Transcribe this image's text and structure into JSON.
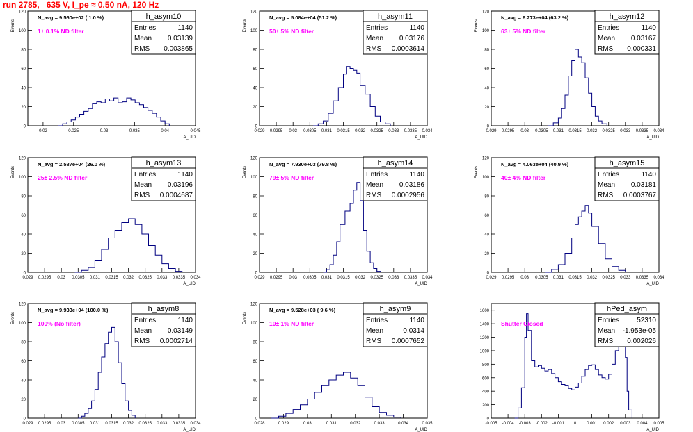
{
  "page_title": "run 2785,   635 V, I_pe ≈ 0.50 nA, 120 Hz",
  "colors": {
    "title": "#ff0000",
    "histogram": "#000080",
    "filter_label": "#ff00ff",
    "axis": "#000000"
  },
  "stats_labels": {
    "entries": "Entries",
    "mean": "Mean",
    "rms": "RMS"
  },
  "chart_data": [
    {
      "type": "histogram",
      "name": "h_asym10",
      "navg": "N_avg = 9.560e+02 ( 1.0 %)",
      "filter": "1± 0.1% ND filter",
      "entries": "1140",
      "mean": "0.03139",
      "rms": "0.003865",
      "ylabel": "Events",
      "xlabel": "A_UID",
      "xlim": [
        0.0175,
        0.045
      ],
      "ylim": [
        0,
        120
      ],
      "xticks": [
        0.02,
        0.025,
        0.03,
        0.035,
        0.04,
        0.045
      ],
      "xtick_labels": [
        "0.02",
        "0.025",
        "0.03",
        "0.035",
        "0.04",
        "0.045"
      ],
      "yticks": [
        0,
        20,
        40,
        60,
        80,
        100,
        120
      ],
      "bins": [
        [
          0.0225,
          0
        ],
        [
          0.0232,
          2
        ],
        [
          0.0239,
          4
        ],
        [
          0.0246,
          6
        ],
        [
          0.0253,
          9
        ],
        [
          0.026,
          12
        ],
        [
          0.0267,
          15
        ],
        [
          0.0274,
          18
        ],
        [
          0.0281,
          23
        ],
        [
          0.0288,
          25
        ],
        [
          0.0295,
          24
        ],
        [
          0.0302,
          28
        ],
        [
          0.0309,
          26
        ],
        [
          0.0316,
          29
        ],
        [
          0.0323,
          24
        ],
        [
          0.033,
          25
        ],
        [
          0.0337,
          29
        ],
        [
          0.0344,
          27
        ],
        [
          0.0351,
          24
        ],
        [
          0.0358,
          22
        ],
        [
          0.0365,
          19
        ],
        [
          0.0372,
          16
        ],
        [
          0.0379,
          13
        ],
        [
          0.0386,
          9
        ],
        [
          0.0393,
          5
        ],
        [
          0.04,
          2
        ],
        [
          0.0407,
          0
        ]
      ]
    },
    {
      "type": "histogram",
      "name": "h_asym11",
      "navg": "N_avg = 5.084e+04 (51.2 %)",
      "filter": "50± 5% ND filter",
      "entries": "1140",
      "mean": "0.03176",
      "rms": "0.0003614",
      "ylabel": "Events",
      "xlabel": "A_UID",
      "xlim": [
        0.029,
        0.034
      ],
      "ylim": [
        0,
        120
      ],
      "xticks": [
        0.029,
        0.0295,
        0.03,
        0.0305,
        0.031,
        0.0315,
        0.032,
        0.0325,
        0.033,
        0.0335,
        0.034
      ],
      "xtick_labels": [
        "0.029",
        "0.0295",
        "0.03",
        "0.0305",
        "0.031",
        "0.0315",
        "0.032",
        "0.0325",
        "0.033",
        "0.0335",
        "0.034"
      ],
      "yticks": [
        0,
        20,
        40,
        60,
        80,
        100,
        120
      ],
      "bins": [
        [
          0.0306,
          0
        ],
        [
          0.03075,
          2
        ],
        [
          0.0309,
          5
        ],
        [
          0.03105,
          13
        ],
        [
          0.0312,
          26
        ],
        [
          0.03135,
          40
        ],
        [
          0.0315,
          54
        ],
        [
          0.0316,
          62
        ],
        [
          0.0317,
          60
        ],
        [
          0.0318,
          58
        ],
        [
          0.0319,
          55
        ],
        [
          0.032,
          42
        ],
        [
          0.03215,
          33
        ],
        [
          0.0323,
          20
        ],
        [
          0.03245,
          10
        ],
        [
          0.0326,
          4
        ],
        [
          0.03275,
          2
        ],
        [
          0.0329,
          0
        ]
      ]
    },
    {
      "type": "histogram",
      "name": "h_asym12",
      "navg": "N_avg = 6.273e+04 (63.2 %)",
      "filter": "63± 5% ND filter",
      "entries": "1140",
      "mean": "0.03167",
      "rms": "0.000331",
      "ylabel": "Events",
      "xlabel": "A_UID",
      "xlim": [
        0.029,
        0.034
      ],
      "ylim": [
        0,
        120
      ],
      "xticks": [
        0.029,
        0.0295,
        0.03,
        0.0305,
        0.031,
        0.0315,
        0.032,
        0.0325,
        0.033,
        0.0335,
        0.034
      ],
      "xtick_labels": [
        "0.029",
        "0.0295",
        "0.03",
        "0.0305",
        "0.031",
        "0.0315",
        "0.032",
        "0.0325",
        "0.033",
        "0.0335",
        "0.034"
      ],
      "yticks": [
        0,
        20,
        40,
        60,
        80,
        100,
        120
      ],
      "bins": [
        [
          0.0307,
          0
        ],
        [
          0.03085,
          3
        ],
        [
          0.031,
          8
        ],
        [
          0.0311,
          18
        ],
        [
          0.0312,
          32
        ],
        [
          0.0313,
          52
        ],
        [
          0.0314,
          68
        ],
        [
          0.0315,
          80
        ],
        [
          0.0316,
          72
        ],
        [
          0.0317,
          66
        ],
        [
          0.0318,
          50
        ],
        [
          0.0319,
          34
        ],
        [
          0.032,
          20
        ],
        [
          0.0321,
          10
        ],
        [
          0.0322,
          5
        ],
        [
          0.0323,
          2
        ],
        [
          0.03245,
          0
        ]
      ]
    },
    {
      "type": "histogram",
      "name": "h_asym13",
      "navg": "N_avg = 2.587e+04 (26.0 %)",
      "filter": "25± 2.5% ND filter",
      "entries": "1140",
      "mean": "0.03196",
      "rms": "0.0004687",
      "ylabel": "Events",
      "xlabel": "A_UID",
      "xlim": [
        0.029,
        0.034
      ],
      "ylim": [
        0,
        120
      ],
      "xticks": [
        0.029,
        0.0295,
        0.03,
        0.0305,
        0.031,
        0.0315,
        0.032,
        0.0325,
        0.033,
        0.0335,
        0.034
      ],
      "xtick_labels": [
        "0.029",
        "0.0295",
        "0.03",
        "0.0305",
        "0.031",
        "0.0315",
        "0.032",
        "0.0325",
        "0.033",
        "0.0335",
        "0.034"
      ],
      "yticks": [
        0,
        20,
        40,
        60,
        80,
        100,
        120
      ],
      "bins": [
        [
          0.0304,
          0
        ],
        [
          0.0306,
          2
        ],
        [
          0.0308,
          5
        ],
        [
          0.031,
          12
        ],
        [
          0.0312,
          24
        ],
        [
          0.0314,
          36
        ],
        [
          0.0316,
          44
        ],
        [
          0.0318,
          52
        ],
        [
          0.032,
          56
        ],
        [
          0.0322,
          50
        ],
        [
          0.0324,
          40
        ],
        [
          0.0326,
          28
        ],
        [
          0.0328,
          18
        ],
        [
          0.033,
          9
        ],
        [
          0.0332,
          4
        ],
        [
          0.0334,
          1
        ],
        [
          0.0336,
          0
        ]
      ]
    },
    {
      "type": "histogram",
      "name": "h_asym14",
      "navg": "N_avg = 7.930e+03 (79.8 %)",
      "filter": "79± 5% ND filter",
      "entries": "1140",
      "mean": "0.03186",
      "rms": "0.0002956",
      "ylabel": "Events",
      "xlabel": "A_UID",
      "xlim": [
        0.029,
        0.034
      ],
      "ylim": [
        0,
        120
      ],
      "xticks": [
        0.029,
        0.0295,
        0.03,
        0.0305,
        0.031,
        0.0315,
        0.032,
        0.0325,
        0.033,
        0.0335,
        0.034
      ],
      "xtick_labels": [
        "0.029",
        "0.0295",
        "0.03",
        "0.0305",
        "0.031",
        "0.0315",
        "0.032",
        "0.0325",
        "0.033",
        "0.0335",
        "0.034"
      ],
      "yticks": [
        0,
        20,
        40,
        60,
        80,
        100,
        120
      ],
      "bins": [
        [
          0.0309,
          0
        ],
        [
          0.031,
          3
        ],
        [
          0.0311,
          8
        ],
        [
          0.0312,
          18
        ],
        [
          0.0313,
          32
        ],
        [
          0.0314,
          50
        ],
        [
          0.03155,
          64
        ],
        [
          0.0317,
          72
        ],
        [
          0.0318,
          86
        ],
        [
          0.0319,
          94
        ],
        [
          0.032,
          75
        ],
        [
          0.0321,
          44
        ],
        [
          0.0322,
          22
        ],
        [
          0.0323,
          10
        ],
        [
          0.0324,
          4
        ],
        [
          0.0325,
          1
        ],
        [
          0.0326,
          0
        ]
      ]
    },
    {
      "type": "histogram",
      "name": "h_asym15",
      "navg": "N_avg = 4.063e+04 (40.9 %)",
      "filter": "40± 4% ND filter",
      "entries": "1140",
      "mean": "0.03181",
      "rms": "0.0003767",
      "ylabel": "Events",
      "xlabel": "A_UID",
      "xlim": [
        0.029,
        0.034
      ],
      "ylim": [
        0,
        120
      ],
      "xticks": [
        0.029,
        0.0295,
        0.03,
        0.0305,
        0.031,
        0.0315,
        0.032,
        0.0325,
        0.033,
        0.0335,
        0.034
      ],
      "xtick_labels": [
        "0.029",
        "0.0295",
        "0.03",
        "0.0305",
        "0.031",
        "0.0315",
        "0.032",
        "0.0325",
        "0.033",
        "0.0335",
        "0.034"
      ],
      "yticks": [
        0,
        20,
        40,
        60,
        80,
        100,
        120
      ],
      "bins": [
        [
          0.0306,
          0
        ],
        [
          0.0308,
          3
        ],
        [
          0.031,
          8
        ],
        [
          0.0312,
          20
        ],
        [
          0.0314,
          36
        ],
        [
          0.0315,
          50
        ],
        [
          0.0316,
          58
        ],
        [
          0.0317,
          64
        ],
        [
          0.0318,
          70
        ],
        [
          0.0319,
          62
        ],
        [
          0.032,
          48
        ],
        [
          0.0322,
          30
        ],
        [
          0.0324,
          14
        ],
        [
          0.0326,
          6
        ],
        [
          0.0328,
          2
        ],
        [
          0.033,
          0
        ]
      ]
    },
    {
      "type": "histogram",
      "name": "h_asym8",
      "navg": "N_avg = 9.933e+04 (100.0 %)",
      "filter": "100% (No filter)",
      "entries": "1140",
      "mean": "0.03149",
      "rms": "0.0002714",
      "ylabel": "Events",
      "xlabel": "A_UID",
      "xlim": [
        0.029,
        0.034
      ],
      "ylim": [
        0,
        120
      ],
      "xticks": [
        0.029,
        0.0295,
        0.03,
        0.0305,
        0.031,
        0.0315,
        0.032,
        0.0325,
        0.033,
        0.0335,
        0.034
      ],
      "xtick_labels": [
        "0.029",
        "0.0295",
        "0.03",
        "0.0305",
        "0.031",
        "0.0315",
        "0.032",
        "0.0325",
        "0.033",
        "0.0335",
        "0.034"
      ],
      "yticks": [
        0,
        20,
        40,
        60,
        80,
        100,
        120
      ],
      "bins": [
        [
          0.0305,
          0
        ],
        [
          0.0306,
          2
        ],
        [
          0.0307,
          5
        ],
        [
          0.0308,
          10
        ],
        [
          0.0309,
          18
        ],
        [
          0.031,
          30
        ],
        [
          0.0311,
          48
        ],
        [
          0.0312,
          64
        ],
        [
          0.0313,
          78
        ],
        [
          0.0314,
          90
        ],
        [
          0.0315,
          95
        ],
        [
          0.0316,
          80
        ],
        [
          0.0317,
          58
        ],
        [
          0.0318,
          36
        ],
        [
          0.0319,
          18
        ],
        [
          0.032,
          8
        ],
        [
          0.0321,
          3
        ],
        [
          0.0322,
          0
        ]
      ]
    },
    {
      "type": "histogram",
      "name": "h_asym9",
      "navg": "N_avg = 9.528e+03 ( 9.6 %)",
      "filter": "10± 1% ND filter",
      "entries": "1140",
      "mean": "0.0314",
      "rms": "0.0007652",
      "ylabel": "Events",
      "xlabel": "A_UID",
      "xlim": [
        0.028,
        0.035
      ],
      "ylim": [
        0,
        120
      ],
      "xticks": [
        0.028,
        0.029,
        0.03,
        0.031,
        0.032,
        0.033,
        0.034,
        0.035
      ],
      "xtick_labels": [
        "0.028",
        "0.029",
        "0.03",
        "0.031",
        "0.032",
        "0.033",
        "0.034",
        "0.035"
      ],
      "yticks": [
        0,
        20,
        40,
        60,
        80,
        100,
        120
      ],
      "bins": [
        [
          0.0285,
          0
        ],
        [
          0.0288,
          2
        ],
        [
          0.0291,
          5
        ],
        [
          0.0294,
          9
        ],
        [
          0.0297,
          14
        ],
        [
          0.03,
          20
        ],
        [
          0.0303,
          27
        ],
        [
          0.0306,
          34
        ],
        [
          0.0309,
          40
        ],
        [
          0.0312,
          45
        ],
        [
          0.0315,
          48
        ],
        [
          0.0318,
          42
        ],
        [
          0.0321,
          34
        ],
        [
          0.0324,
          22
        ],
        [
          0.0327,
          12
        ],
        [
          0.033,
          6
        ],
        [
          0.0333,
          3
        ],
        [
          0.0336,
          1
        ],
        [
          0.0339,
          0
        ]
      ]
    },
    {
      "type": "histogram",
      "name": "hPed_asym",
      "navg": "",
      "filter": "Shutter Closed",
      "entries": "52310",
      "mean": "-1.953e-05",
      "rms": "0.002026",
      "ylabel": "",
      "xlabel": "A_UID",
      "xlim": [
        -0.005,
        0.005
      ],
      "ylim": [
        0,
        1700
      ],
      "xticks": [
        -0.005,
        -0.004,
        -0.003,
        -0.002,
        -0.001,
        0,
        0.001,
        0.002,
        0.003,
        0.004,
        0.005
      ],
      "xtick_labels": [
        "-0.005",
        "-0.004",
        "-0.003",
        "-0.002",
        "-0.001",
        "0",
        "0.001",
        "0.002",
        "0.003",
        "0.004",
        "0.005"
      ],
      "yticks": [
        0,
        200,
        400,
        600,
        800,
        1000,
        1200,
        1400,
        1600
      ],
      "bins": [
        [
          -0.0036,
          0
        ],
        [
          -0.0034,
          150
        ],
        [
          -0.0032,
          450
        ],
        [
          -0.003,
          1200
        ],
        [
          -0.0029,
          1550
        ],
        [
          -0.0028,
          1300
        ],
        [
          -0.0026,
          850
        ],
        [
          -0.0024,
          760
        ],
        [
          -0.0022,
          780
        ],
        [
          -0.002,
          740
        ],
        [
          -0.0018,
          700
        ],
        [
          -0.0016,
          720
        ],
        [
          -0.0014,
          660
        ],
        [
          -0.0012,
          600
        ],
        [
          -0.001,
          540
        ],
        [
          -0.0008,
          500
        ],
        [
          -0.0006,
          480
        ],
        [
          -0.0004,
          440
        ],
        [
          -0.0002,
          420
        ],
        [
          0,
          460
        ],
        [
          0.0002,
          520
        ],
        [
          0.0004,
          620
        ],
        [
          0.0006,
          720
        ],
        [
          0.0008,
          780
        ],
        [
          0.001,
          790
        ],
        [
          0.0012,
          720
        ],
        [
          0.0014,
          640
        ],
        [
          0.0016,
          600
        ],
        [
          0.0018,
          580
        ],
        [
          0.002,
          650
        ],
        [
          0.0022,
          800
        ],
        [
          0.0024,
          1000
        ],
        [
          0.0026,
          1150
        ],
        [
          0.0028,
          1200
        ],
        [
          0.003,
          900
        ],
        [
          0.0031,
          400
        ],
        [
          0.0032,
          120
        ],
        [
          0.0034,
          0
        ]
      ]
    }
  ]
}
